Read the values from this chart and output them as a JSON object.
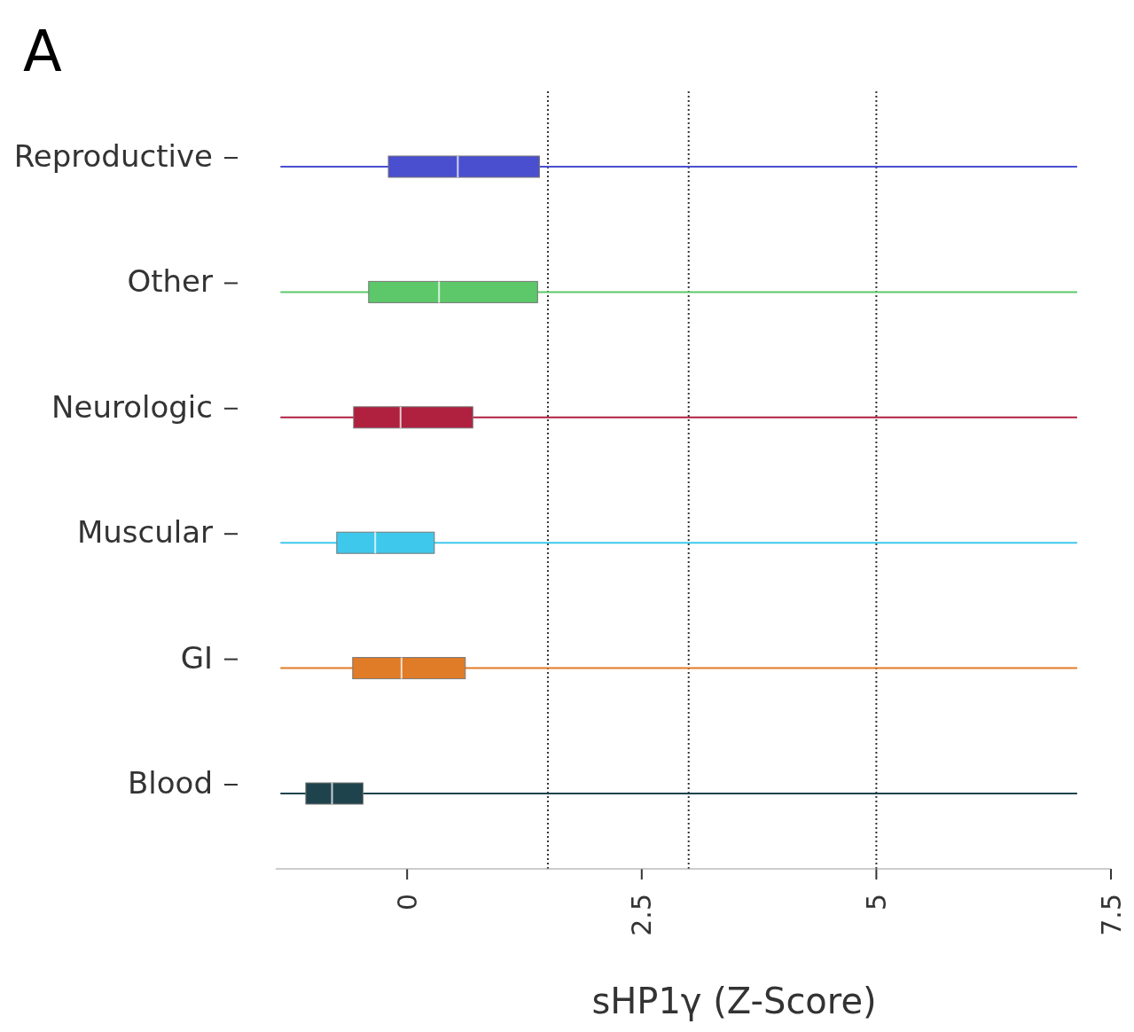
{
  "chart_data": {
    "type": "box",
    "orientation": "horizontal",
    "xlabel": "sHP1γ (Z-Score)",
    "annotations": [
      "A"
    ],
    "categories": [
      "Reproductive",
      "Other",
      "Neurologic",
      "Muscular",
      "GI",
      "Blood"
    ],
    "colors": [
      "#4a4fd0",
      "#5dc86a",
      "#b0203f",
      "#3ec8ec",
      "#e07b27",
      "#1e434d"
    ],
    "boxes": [
      {
        "low": -1.35,
        "q1": -0.2,
        "median": 0.54,
        "q3": 1.41,
        "high": 7.14
      },
      {
        "low": -1.35,
        "q1": -0.41,
        "median": 0.34,
        "q3": 1.39,
        "high": 7.14
      },
      {
        "low": -1.35,
        "q1": -0.57,
        "median": -0.07,
        "q3": 0.7,
        "high": 7.14
      },
      {
        "low": -1.35,
        "q1": -0.75,
        "median": -0.34,
        "q3": 0.29,
        "high": 7.14
      },
      {
        "low": -1.35,
        "q1": -0.58,
        "median": -0.06,
        "q3": 0.62,
        "high": 7.14
      },
      {
        "low": -1.35,
        "q1": -1.08,
        "median": -0.8,
        "q3": -0.47,
        "high": 7.14
      }
    ],
    "xlim": [
      -1.4,
      7.5
    ],
    "xticks": [
      0,
      2.5,
      5,
      7.5
    ],
    "ref_lines": [
      {
        "axis": "x",
        "value": 1.5,
        "line_style": "dotted"
      },
      {
        "axis": "x",
        "value": 3,
        "line_style": "dotted"
      },
      {
        "axis": "x",
        "value": 5,
        "line_style": "dotted"
      }
    ],
    "grid": false
  }
}
